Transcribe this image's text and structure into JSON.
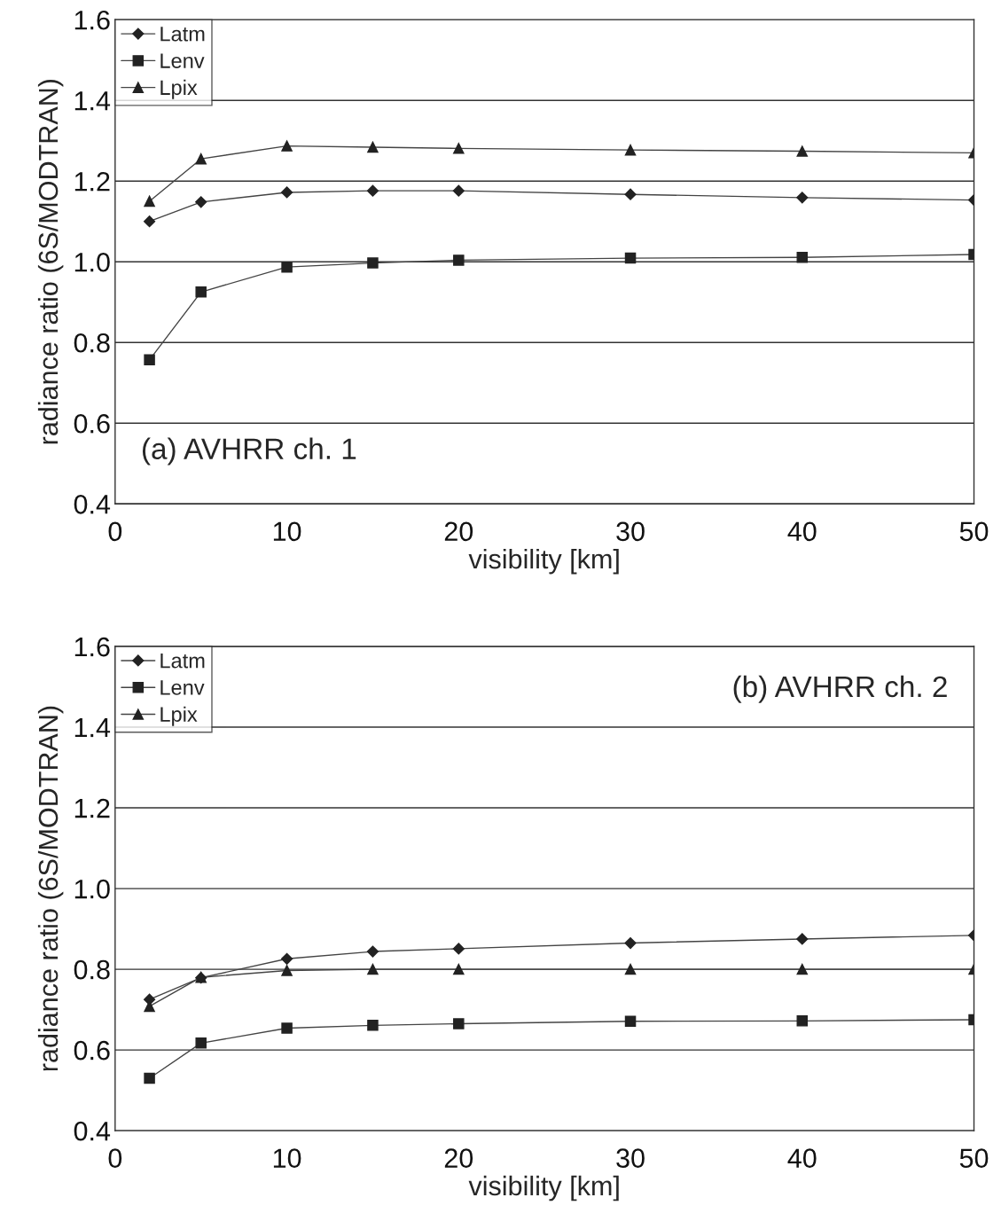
{
  "chart_data": [
    {
      "type": "line",
      "xlabel": "visibility [km]",
      "ylabel": "radiance ratio (6S/MODTRAN)",
      "x": [
        2,
        5,
        10,
        15,
        20,
        30,
        40,
        50
      ],
      "series": [
        {
          "name": "Latm",
          "color": "#222222",
          "marker": "diamond",
          "values": [
            1.1,
            1.148,
            1.172,
            1.176,
            1.176,
            1.167,
            1.159,
            1.153
          ]
        },
        {
          "name": "Lenv",
          "color": "#222222",
          "marker": "square",
          "values": [
            0.757,
            0.925,
            0.987,
            0.997,
            1.004,
            1.009,
            1.011,
            1.018
          ]
        },
        {
          "name": "Lpix",
          "color": "#222222",
          "marker": "triangle",
          "values": [
            1.15,
            1.255,
            1.287,
            1.284,
            1.281,
            1.277,
            1.274,
            1.27
          ]
        }
      ],
      "xlim": [
        0,
        50
      ],
      "xticks": [
        0,
        10,
        20,
        30,
        40,
        50
      ],
      "ylim": [
        0.4,
        1.6
      ],
      "yticks": [
        {
          "value": 0.4,
          "label": "0.4"
        },
        {
          "value": 0.6,
          "label": "0.6"
        },
        {
          "value": 0.8,
          "label": "0.8"
        },
        {
          "value": 1.0,
          "label": "1.0"
        },
        {
          "value": 1.2,
          "label": "1.2"
        },
        {
          "value": 1.4,
          "label": "1.4"
        },
        {
          "value": 1.6,
          "label": "1.6"
        }
      ],
      "grid": "y",
      "legend": "top left",
      "annotations": [
        "(a) AVHRR ch. 1"
      ]
    },
    {
      "type": "line",
      "xlabel": "visibility [km]",
      "ylabel": "radiance ratio (6S/MODTRAN)",
      "x": [
        2,
        5,
        10,
        15,
        20,
        30,
        40,
        50
      ],
      "series": [
        {
          "name": "Latm",
          "color": "#222222",
          "marker": "diamond",
          "values": [
            0.725,
            0.779,
            0.826,
            0.844,
            0.851,
            0.865,
            0.875,
            0.884
          ]
        },
        {
          "name": "Lenv",
          "color": "#222222",
          "marker": "square",
          "values": [
            0.53,
            0.617,
            0.654,
            0.661,
            0.665,
            0.671,
            0.672,
            0.675
          ]
        },
        {
          "name": "Lpix",
          "color": "#222222",
          "marker": "triangle",
          "values": [
            0.708,
            0.78,
            0.797,
            0.8,
            0.8,
            0.8,
            0.8,
            0.8
          ]
        }
      ],
      "xlim": [
        0,
        50
      ],
      "xticks": [
        0,
        10,
        20,
        30,
        40,
        50
      ],
      "ylim": [
        0.4,
        1.6
      ],
      "yticks": [
        {
          "value": 0.4,
          "label": "0.4"
        },
        {
          "value": 0.6,
          "label": "0.6"
        },
        {
          "value": 0.8,
          "label": "0.8"
        },
        {
          "value": 1.0,
          "label": "1.0"
        },
        {
          "value": 1.2,
          "label": "1.2"
        },
        {
          "value": 1.4,
          "label": "1.4"
        },
        {
          "value": 1.6,
          "label": "1.6"
        }
      ],
      "grid": "y",
      "legend": "top left",
      "annotations": [
        "(b) AVHRR ch. 2"
      ]
    }
  ]
}
